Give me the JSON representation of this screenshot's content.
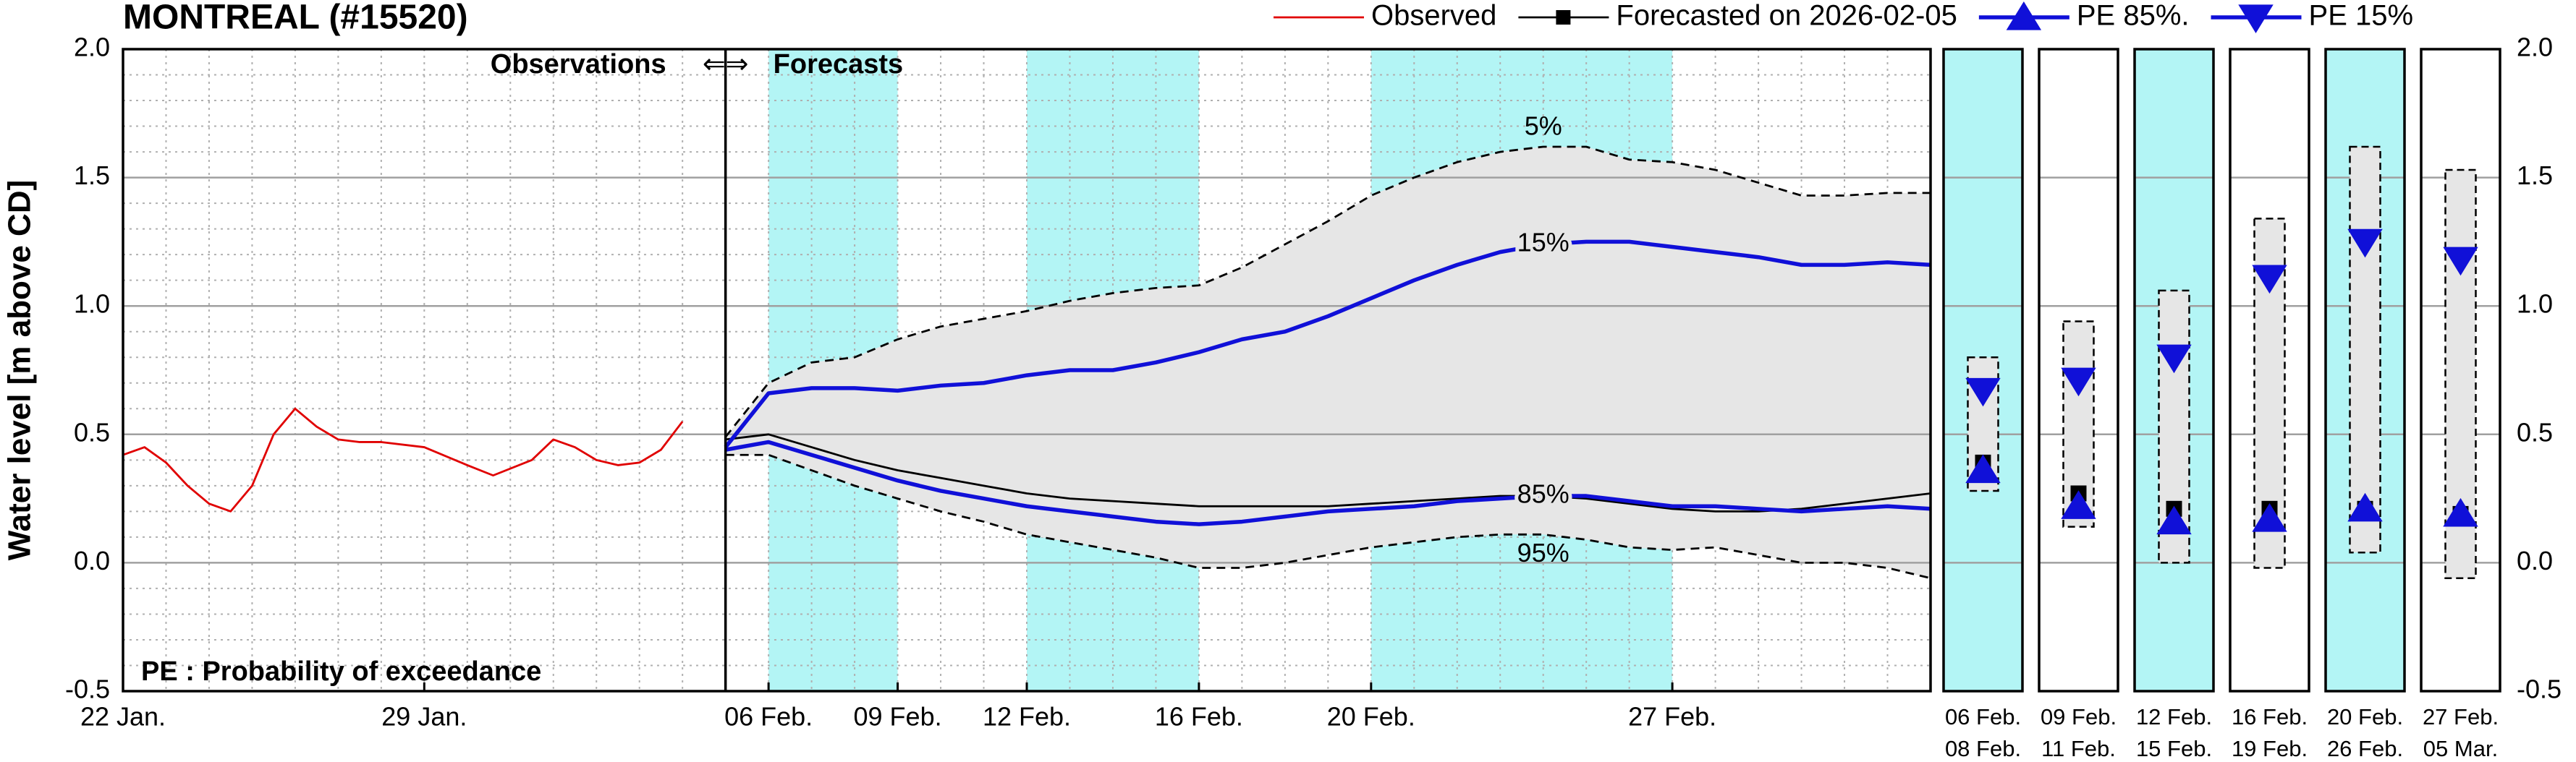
{
  "chart_data": {
    "type": "line",
    "title": "MONTREAL (#15520)",
    "y_label": "Water level [m above CD]",
    "annotations": {
      "observations": "Observations",
      "arrows": "⇐⇒",
      "forecasts": "Forecasts",
      "note": "PE : Probability of exceedance"
    },
    "xlim": [
      0,
      42
    ],
    "xticks": [
      {
        "value": 0,
        "label": "22 Jan."
      },
      {
        "value": 7,
        "label": "29 Jan."
      },
      {
        "value": 15,
        "label": "06 Feb."
      },
      {
        "value": 18,
        "label": "09 Feb."
      },
      {
        "value": 21,
        "label": "12 Feb."
      },
      {
        "value": 25,
        "label": "16 Feb."
      },
      {
        "value": 29,
        "label": "20 Feb."
      },
      {
        "value": 36,
        "label": "27 Feb."
      }
    ],
    "xminorticks": [
      1,
      2,
      3,
      4,
      5,
      6,
      7,
      8,
      9,
      10,
      11,
      12,
      13,
      14,
      15,
      16,
      17,
      18,
      19,
      20,
      21,
      22,
      23,
      24,
      25,
      26,
      27,
      28,
      29,
      30,
      31,
      32,
      33,
      34,
      35,
      36,
      37,
      38,
      39,
      40,
      41
    ],
    "ylim": [
      -0.5,
      2.0
    ],
    "yticks": [
      -0.5,
      {
        "value": 0,
        "label": "0.0"
      },
      0.5,
      {
        "value": 1,
        "label": "1.0"
      },
      1.5,
      {
        "value": 2,
        "label": "2.0"
      }
    ],
    "yminorticks": [
      -0.4,
      -0.3,
      -0.2,
      -0.1,
      0.1,
      0.2,
      0.3,
      0.4,
      0.6,
      0.7,
      0.8,
      0.9,
      1.1,
      1.2,
      1.3,
      1.4,
      1.6,
      1.7,
      1.8,
      1.9
    ],
    "grid": true,
    "divider_x": 14,
    "shaded_ranges": [
      [
        15,
        18
      ],
      [
        21,
        25
      ],
      [
        29,
        36
      ]
    ],
    "shade_color": "#b3f5f5",
    "band_color": "#e6e6e6",
    "series": [
      {
        "name": "Observed",
        "color": "#e00000",
        "x": [
          0,
          0.5,
          1,
          1.5,
          2,
          2.5,
          3,
          3.5,
          4,
          4.5,
          5,
          5.5,
          6,
          7,
          8,
          8.6,
          9.5,
          10,
          10.5,
          11,
          11.5,
          12,
          12.5,
          13
        ],
        "values": [
          0.42,
          0.45,
          0.39,
          0.3,
          0.23,
          0.2,
          0.3,
          0.5,
          0.6,
          0.53,
          0.48,
          0.47,
          0.47,
          0.45,
          0.38,
          0.34,
          0.4,
          0.48,
          0.45,
          0.4,
          0.38,
          0.39,
          0.44,
          0.55
        ]
      },
      {
        "name": "Forecasted on 2026-02-05",
        "color": "#000000",
        "marker": "square",
        "x": [
          14,
          15,
          16,
          17,
          18,
          19,
          20,
          21,
          22,
          23,
          24,
          25,
          26,
          27,
          28,
          29,
          30,
          31,
          32,
          33,
          34,
          35,
          36,
          37,
          38,
          39,
          40,
          41,
          42
        ],
        "values": [
          0.48,
          0.5,
          0.45,
          0.4,
          0.36,
          0.33,
          0.3,
          0.27,
          0.25,
          0.24,
          0.23,
          0.22,
          0.22,
          0.22,
          0.22,
          0.23,
          0.24,
          0.25,
          0.26,
          0.26,
          0.25,
          0.23,
          0.21,
          0.2,
          0.2,
          0.21,
          0.23,
          0.25,
          0.27
        ]
      },
      {
        "name": "PE 85%.",
        "label": "85%",
        "color": "#1010d8",
        "marker": "triangle-up",
        "x": [
          14,
          15,
          16,
          17,
          18,
          19,
          20,
          21,
          22,
          23,
          24,
          25,
          26,
          27,
          28,
          29,
          30,
          31,
          32,
          33,
          34,
          35,
          36,
          37,
          38,
          39,
          40,
          41,
          42
        ],
        "values": [
          0.44,
          0.47,
          0.42,
          0.37,
          0.32,
          0.28,
          0.25,
          0.22,
          0.2,
          0.18,
          0.16,
          0.15,
          0.16,
          0.18,
          0.2,
          0.21,
          0.22,
          0.24,
          0.25,
          0.26,
          0.26,
          0.24,
          0.22,
          0.22,
          0.21,
          0.2,
          0.21,
          0.22,
          0.21
        ]
      },
      {
        "name": "PE 15%",
        "label": "15%",
        "color": "#1010d8",
        "marker": "triangle-down",
        "x": [
          14,
          15,
          16,
          17,
          18,
          19,
          20,
          21,
          22,
          23,
          24,
          25,
          26,
          27,
          28,
          29,
          30,
          31,
          32,
          33,
          34,
          35,
          36,
          37,
          38,
          39,
          40,
          41,
          42
        ],
        "values": [
          0.45,
          0.66,
          0.68,
          0.68,
          0.67,
          0.69,
          0.7,
          0.73,
          0.75,
          0.75,
          0.78,
          0.82,
          0.87,
          0.9,
          0.96,
          1.03,
          1.1,
          1.16,
          1.21,
          1.24,
          1.25,
          1.25,
          1.23,
          1.21,
          1.19,
          1.16,
          1.16,
          1.17,
          1.16
        ]
      },
      {
        "name": "5%",
        "color": "#000000",
        "style": "dashed",
        "legend": false,
        "x": [
          14,
          15,
          16,
          17,
          18,
          19,
          20,
          21,
          22,
          23,
          24,
          25,
          26,
          27,
          28,
          29,
          30,
          31,
          32,
          33,
          34,
          35,
          36,
          37,
          38,
          39,
          40,
          41,
          42
        ],
        "values": [
          0.49,
          0.7,
          0.78,
          0.8,
          0.87,
          0.92,
          0.95,
          0.98,
          1.02,
          1.05,
          1.07,
          1.08,
          1.15,
          1.24,
          1.33,
          1.43,
          1.5,
          1.56,
          1.6,
          1.62,
          1.62,
          1.57,
          1.56,
          1.53,
          1.48,
          1.43,
          1.43,
          1.44,
          1.44
        ]
      },
      {
        "name": "95%",
        "color": "#000000",
        "style": "dashed",
        "legend": false,
        "x": [
          14,
          15,
          16,
          17,
          18,
          19,
          20,
          21,
          22,
          23,
          24,
          25,
          26,
          27,
          28,
          29,
          30,
          31,
          32,
          33,
          34,
          35,
          36,
          37,
          38,
          39,
          40,
          41,
          42
        ],
        "values": [
          0.42,
          0.42,
          0.36,
          0.3,
          0.25,
          0.2,
          0.16,
          0.11,
          0.08,
          0.05,
          0.02,
          -0.02,
          -0.02,
          0.0,
          0.03,
          0.06,
          0.08,
          0.1,
          0.11,
          0.11,
          0.09,
          0.06,
          0.05,
          0.06,
          0.03,
          0.0,
          0.0,
          -0.02,
          -0.06
        ]
      }
    ],
    "panels": [
      {
        "start": "06 Feb.",
        "end": "08 Feb.",
        "shaded": true,
        "low": 0.28,
        "high": 0.8,
        "forecast": 0.39,
        "pe85": 0.36,
        "pe15": 0.67
      },
      {
        "start": "09 Feb.",
        "end": "11 Feb.",
        "shaded": false,
        "low": 0.14,
        "high": 0.94,
        "forecast": 0.27,
        "pe85": 0.22,
        "pe15": 0.71
      },
      {
        "start": "12 Feb.",
        "end": "15 Feb.",
        "shaded": true,
        "low": 0.0,
        "high": 1.06,
        "forecast": 0.21,
        "pe85": 0.16,
        "pe15": 0.8
      },
      {
        "start": "16 Feb.",
        "end": "19 Feb.",
        "shaded": false,
        "low": -0.02,
        "high": 1.34,
        "forecast": 0.21,
        "pe85": 0.17,
        "pe15": 1.11
      },
      {
        "start": "20 Feb.",
        "end": "26 Feb.",
        "shaded": true,
        "low": 0.04,
        "high": 1.62,
        "forecast": 0.21,
        "pe85": 0.21,
        "pe15": 1.25
      },
      {
        "start": "27 Feb.",
        "end": "05 Mar.",
        "shaded": false,
        "low": -0.06,
        "high": 1.53,
        "forecast": 0.19,
        "pe85": 0.19,
        "pe15": 1.18
      }
    ]
  }
}
